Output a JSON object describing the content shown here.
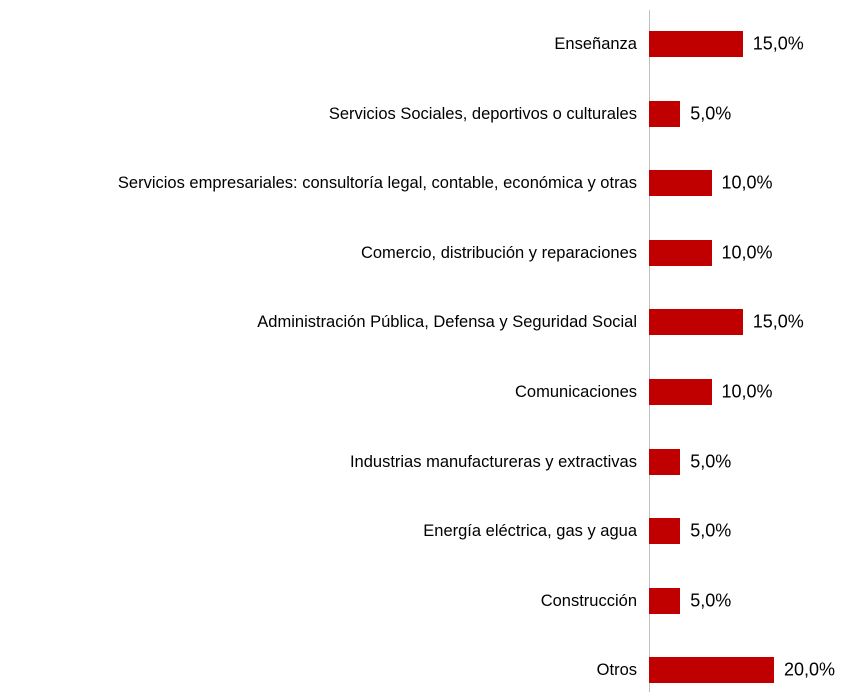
{
  "chart_data": {
    "type": "bar",
    "orientation": "horizontal",
    "categories": [
      "Enseñanza",
      "Servicios Sociales, deportivos o culturales",
      "Servicios empresariales: consultoría legal, contable, económica y otras",
      "Comercio, distribución y reparaciones",
      "Administración Pública, Defensa y Seguridad Social",
      "Comunicaciones",
      "Industrias manufactureras y extractivas",
      "Energía eléctrica, gas y agua",
      "Construcción",
      "Otros"
    ],
    "values": [
      15,
      5,
      10,
      10,
      15,
      10,
      5,
      5,
      5,
      20
    ],
    "value_labels": [
      "15,0%",
      "5,0%",
      "10,0%",
      "10,0%",
      "15,0%",
      "10,0%",
      "5,0%",
      "5,0%",
      "5,0%",
      "20,0%"
    ],
    "color": "#c00000"
  }
}
